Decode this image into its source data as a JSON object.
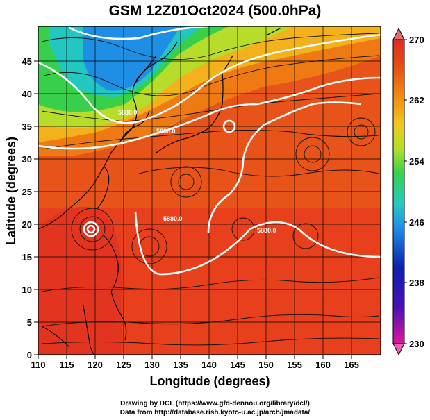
{
  "title": "GSM 12Z01Oct2024 (500.0hPa)",
  "map": {
    "field": "temperature",
    "lon_range": [
      110,
      170
    ],
    "lat_range": [
      0,
      50
    ],
    "xlabel": "Longitude (degrees)",
    "ylabel": "Latitude  (degrees)",
    "x_ticks": [
      "110",
      "115",
      "120",
      "125",
      "130",
      "135",
      "140",
      "145",
      "150",
      "155",
      "160",
      "165"
    ],
    "y_ticks": [
      "0",
      "5",
      "10",
      "15",
      "20",
      "25",
      "30",
      "35",
      "40",
      "45"
    ],
    "contour_label": "5880.0",
    "overlays": [
      "coastlines",
      "wind-streamlines",
      "geopotential-contours",
      "lat-lon-grid"
    ]
  },
  "colorbar": {
    "ticks": [
      "270",
      "262",
      "254",
      "246",
      "238",
      "230"
    ],
    "range": [
      230,
      270
    ],
    "colors": [
      "#e0169b",
      "#0b1fb0",
      "#1e8ee8",
      "#25c9c4",
      "#35d24a",
      "#b2e02a",
      "#f2c81d",
      "#f2860f",
      "#e44a12",
      "#e02a2a"
    ]
  },
  "credit": {
    "line1": "Drawing by DCL (https://www.gfd-dennou.org/library/dcl/)",
    "line2": "Data from http://database.rish.kyoto-u.ac.jp/arch/jmadata/"
  }
}
